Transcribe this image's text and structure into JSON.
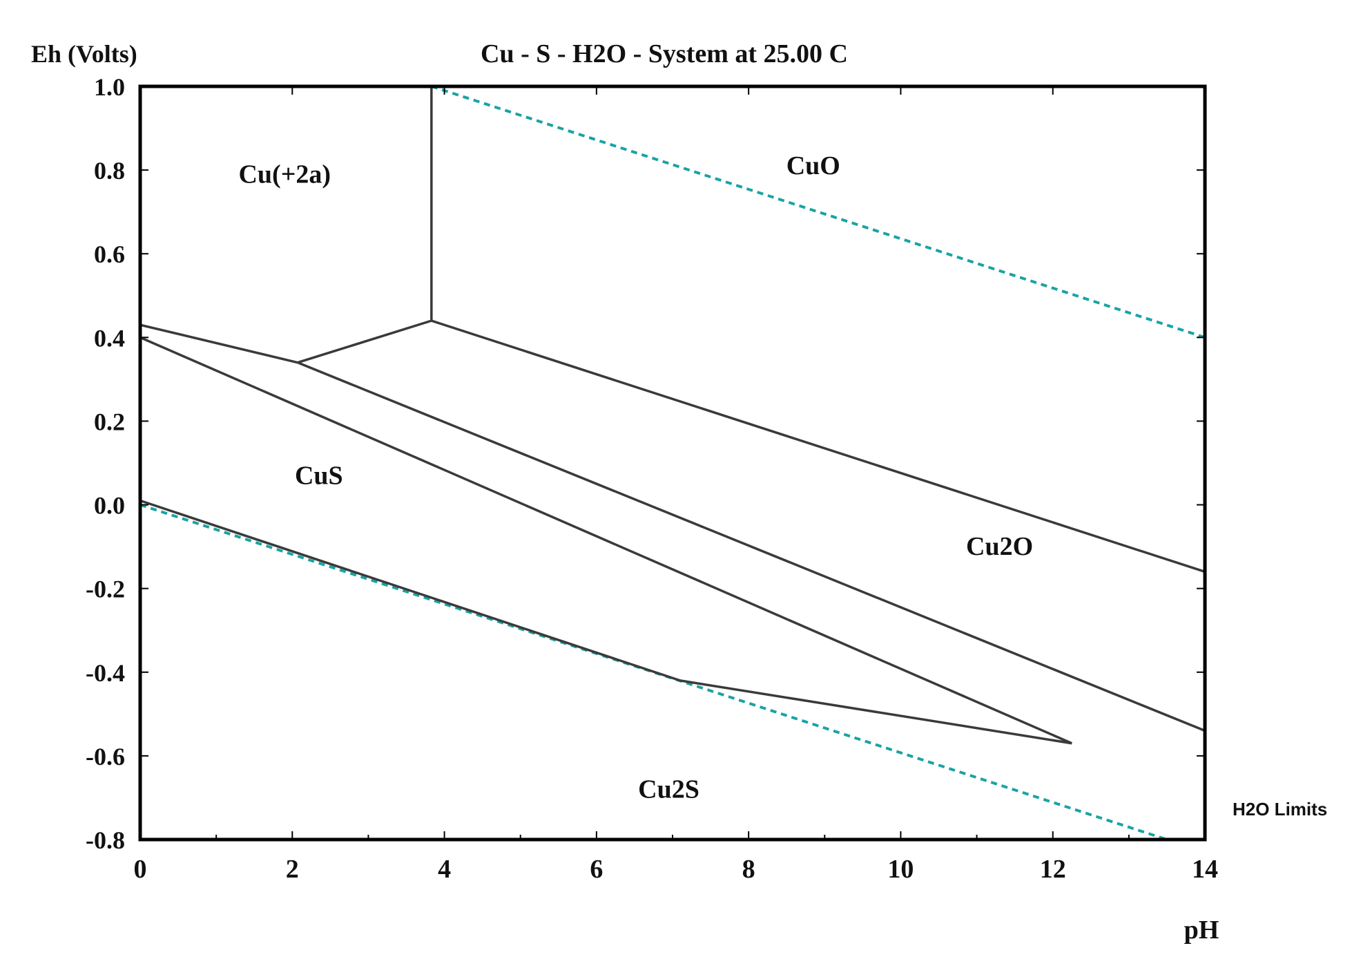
{
  "chart_data": {
    "type": "line",
    "title": "Cu - S - H2O - System at 25.00 C",
    "ylabel": "Eh (Volts)",
    "xlabel": "pH",
    "xlim": [
      0,
      14
    ],
    "ylim": [
      -0.8,
      1.0
    ],
    "x_ticks": [
      0,
      2,
      4,
      6,
      8,
      10,
      12,
      14
    ],
    "y_ticks": [
      1.0,
      0.8,
      0.6,
      0.4,
      0.2,
      0.0,
      -0.2,
      -0.4,
      -0.6,
      -0.8
    ],
    "x_tick_labels": [
      "0",
      "2",
      "4",
      "6",
      "8",
      "10",
      "12",
      "14"
    ],
    "y_tick_labels": [
      "1.0",
      "0.8",
      "0.6",
      "0.4",
      "0.2",
      "0.0",
      "-0.2",
      "-0.4",
      "-0.6",
      "-0.8"
    ],
    "grid": false,
    "legend": {
      "label": "H2O Limits",
      "position": "right"
    },
    "line_color": "#3a3a3a",
    "water_limit_color": "#1aa3a3",
    "boundaries": [
      {
        "x": [
          3.83,
          3.83
        ],
        "y": [
          1.0,
          0.44
        ]
      },
      {
        "x": [
          2.07,
          3.83
        ],
        "y": [
          0.34,
          0.44
        ]
      },
      {
        "x": [
          3.83,
          14
        ],
        "y": [
          0.44,
          -0.16
        ]
      },
      {
        "x": [
          0,
          2.07
        ],
        "y": [
          0.43,
          0.34
        ]
      },
      {
        "x": [
          2.07,
          14
        ],
        "y": [
          0.34,
          -0.54
        ]
      },
      {
        "x": [
          0,
          12.25
        ],
        "y": [
          0.4,
          -0.57
        ]
      },
      {
        "x": [
          0,
          7.1
        ],
        "y": [
          0.01,
          -0.42
        ]
      },
      {
        "x": [
          7.1,
          12.25
        ],
        "y": [
          -0.42,
          -0.57
        ]
      }
    ],
    "water_limits": [
      {
        "x": [
          3.83,
          14
        ],
        "y": [
          1.0,
          0.4
        ]
      },
      {
        "x": [
          0,
          13.5
        ],
        "y": [
          0.0,
          -0.8
        ]
      }
    ],
    "regions": [
      {
        "label": "Cu(+2a)",
        "x": 1.9,
        "y": 0.77
      },
      {
        "label": "CuO",
        "x": 8.85,
        "y": 0.79
      },
      {
        "label": "CuS",
        "x": 2.35,
        "y": 0.05
      },
      {
        "label": "Cu2O",
        "x": 11.3,
        "y": -0.12
      },
      {
        "label": "Cu2S",
        "x": 6.95,
        "y": -0.7
      }
    ]
  }
}
